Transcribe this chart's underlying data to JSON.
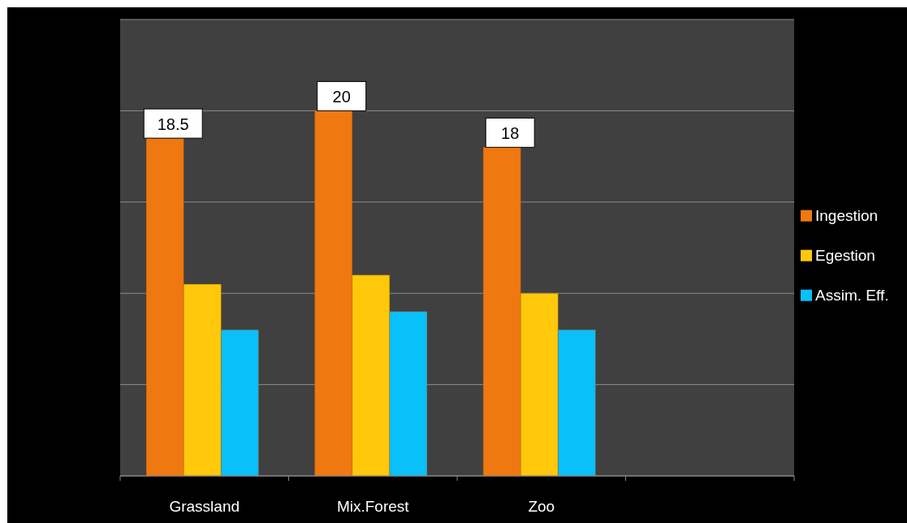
{
  "chart_data": {
    "type": "bar",
    "categories": [
      "Grassland",
      "Mix.Forest",
      "Zoo",
      null
    ],
    "series": [
      {
        "name": "Ingestion",
        "color": "#f07810",
        "values": [
          18.5,
          20,
          18,
          null
        ],
        "value_labels": [
          "18.5",
          "20",
          "18",
          null
        ]
      },
      {
        "name": "Egestion",
        "color": "#ffc80a",
        "values": [
          10.5,
          11,
          10,
          null
        ]
      },
      {
        "name": "Assim. Eff.",
        "color": "#0ac0f8",
        "values": [
          8,
          9,
          8,
          null
        ]
      }
    ],
    "ylim": [
      0,
      25
    ],
    "yticks": [
      {
        "value": 0,
        "label": null
      },
      {
        "value": 5,
        "label": null
      },
      {
        "value": 10,
        "label": null
      },
      {
        "value": 15,
        "label": null
      },
      {
        "value": 20,
        "label": null
      },
      {
        "value": 25,
        "label": null
      }
    ],
    "grid": "y",
    "legend": "right"
  }
}
